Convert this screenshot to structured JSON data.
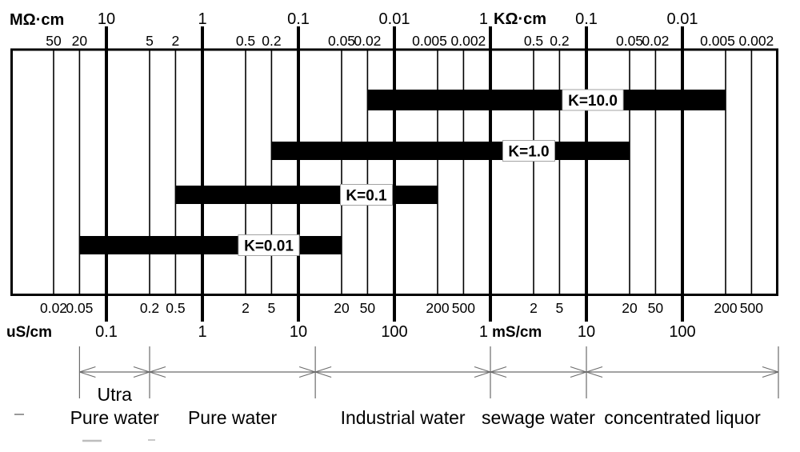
{
  "chart_data": {
    "type": "bar",
    "subtype": "horizontal-log-range-bars",
    "title": "",
    "axes": {
      "scale": "log",
      "range_uS": [
        0.01,
        1000000
      ],
      "minor_uS": [
        0.02,
        0.05,
        0.2,
        0.5,
        2,
        5,
        20,
        50,
        200,
        500,
        2000,
        5000,
        20000,
        50000,
        200000,
        500000
      ],
      "top": {
        "unit": "MΩ·cm",
        "majors": [
          {
            "label": "10",
            "uS": 0.1
          },
          {
            "label": "1",
            "uS": 1
          },
          {
            "label": "0.1",
            "uS": 10
          },
          {
            "label": "0.01",
            "uS": 100
          },
          {
            "label": "1",
            "suffix": "KΩ·cm",
            "uS": 1000
          },
          {
            "label": "0.1",
            "uS": 10000
          },
          {
            "label": "0.01",
            "uS": 100000
          }
        ],
        "minor_labels": [
          "50",
          "20",
          "5",
          "2",
          "0.5",
          "0.2",
          "0.05",
          "0.02",
          "0.005",
          "0.002",
          "0.5",
          "0.2",
          "0.05",
          "0.02",
          "0.005",
          "0.002"
        ]
      },
      "bottom": {
        "unit": "uS/cm",
        "majors": [
          {
            "label": "0.1",
            "uS": 0.1
          },
          {
            "label": "1",
            "uS": 1
          },
          {
            "label": "10",
            "uS": 10
          },
          {
            "label": "100",
            "uS": 100
          },
          {
            "label": "1",
            "suffix": "mS/cm",
            "uS": 1000
          },
          {
            "label": "10",
            "uS": 10000
          },
          {
            "label": "100",
            "uS": 100000
          }
        ],
        "minor_labels": [
          "0.02",
          "0.05",
          "0.2",
          "0.5",
          "2",
          "5",
          "20",
          "50",
          "200",
          "500",
          "2",
          "5",
          "20",
          "50",
          "200",
          "500"
        ]
      }
    },
    "bars": [
      {
        "label": "K=10.0",
        "from_uS": 50,
        "to_uS": 200000
      },
      {
        "label": "K=1.0",
        "from_uS": 5,
        "to_uS": 20000
      },
      {
        "label": "K=0.1",
        "from_uS": 0.5,
        "to_uS": 200
      },
      {
        "label": "K=0.01",
        "from_uS": 0.05,
        "to_uS": 20
      }
    ],
    "water_categories": [
      {
        "lines": [
          "Utra",
          "Pure water"
        ],
        "from_uS": 0.05,
        "to_uS": 0.2
      },
      {
        "lines": [
          "Pure water"
        ],
        "from_uS": 0.2,
        "to_uS": 15
      },
      {
        "lines": [
          "Industrial water"
        ],
        "from_uS": 15,
        "to_uS": 1000
      },
      {
        "lines": [
          "sewage water"
        ],
        "from_uS": 1000,
        "to_uS": 10000
      },
      {
        "lines": [
          "concentrated liquor"
        ],
        "from_uS": 10000,
        "to_uS": 1000000
      }
    ],
    "colors": {
      "bar": "#000000",
      "bar_label_bg": "#ffffff",
      "bar_label_border": "#999999",
      "grid": "#000000",
      "dimension_lines": "#6b6b6b"
    }
  }
}
